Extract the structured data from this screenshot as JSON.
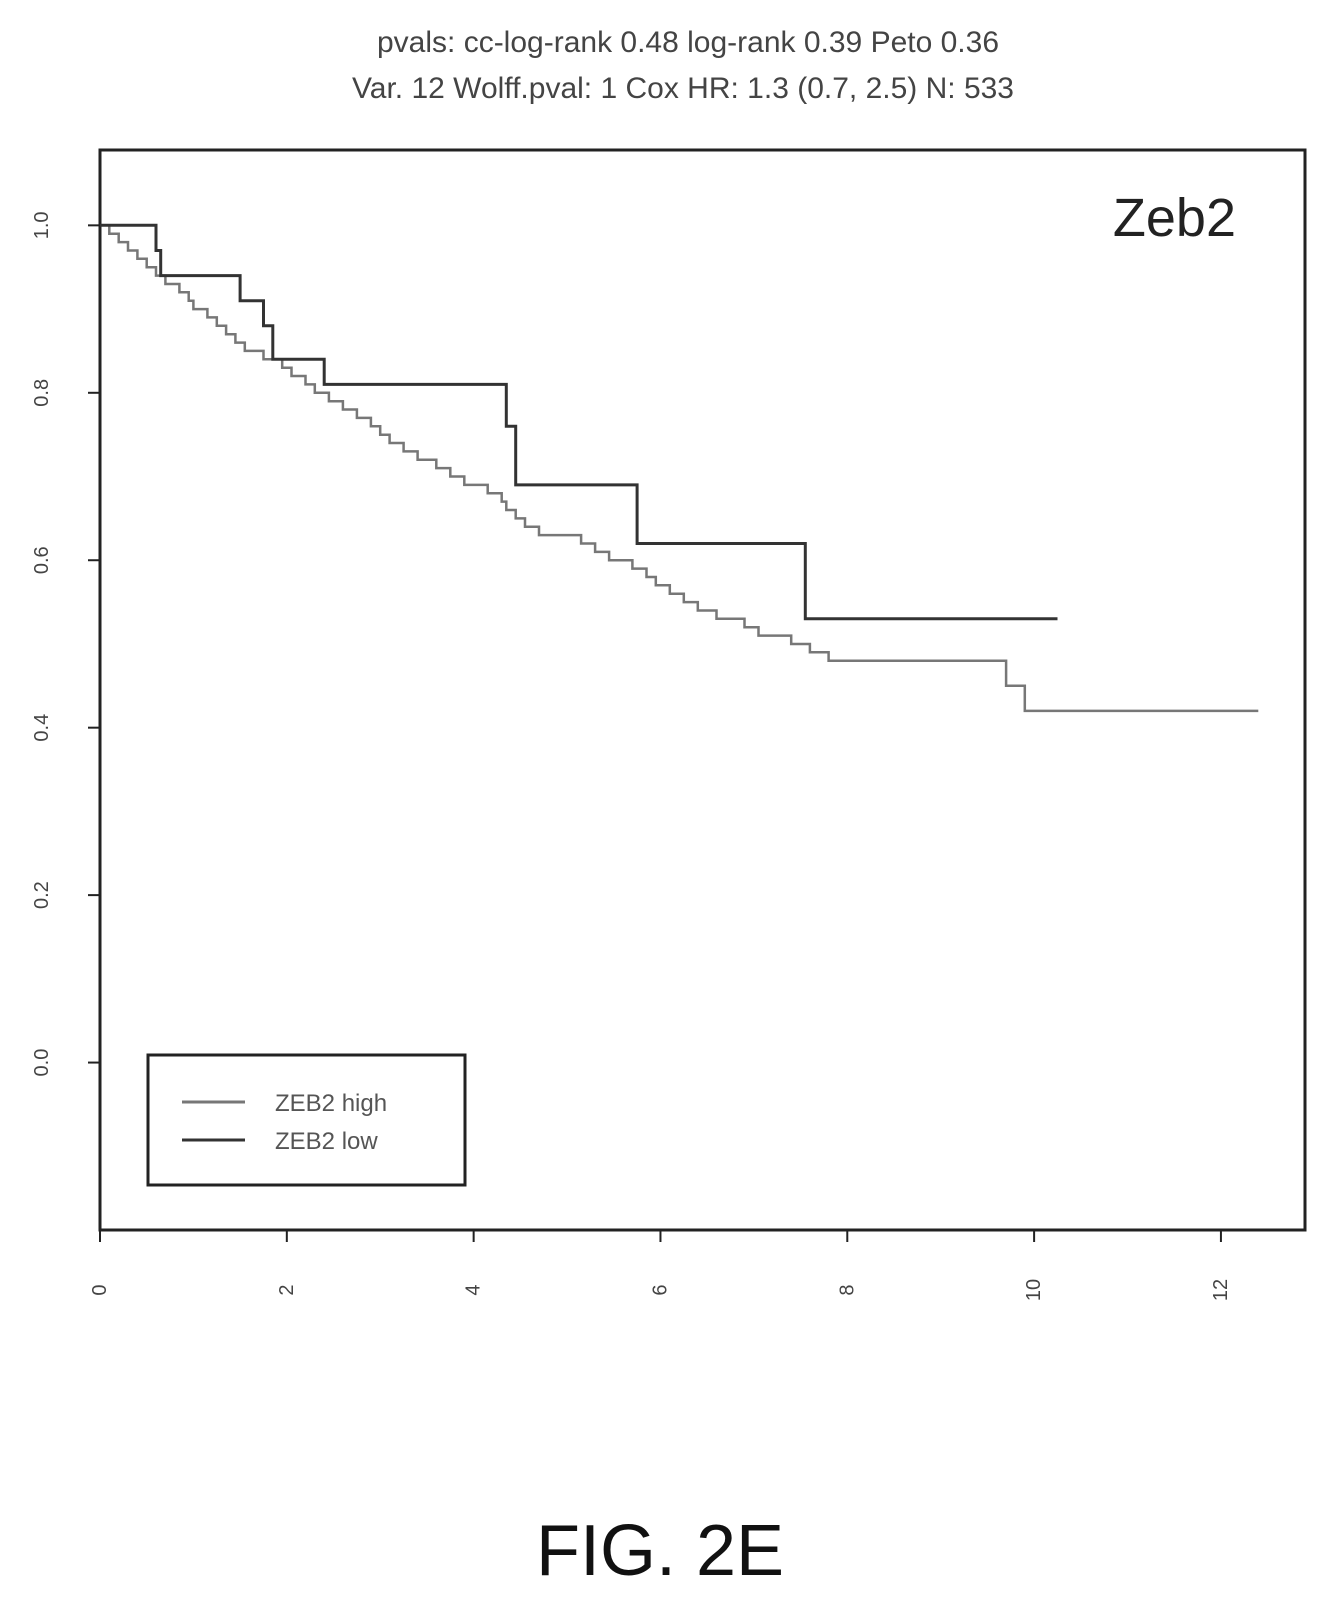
{
  "chart_data": {
    "type": "line",
    "title_lines": [
      "pvals: cc-log-rank 0.48 log-rank 0.39 Peto 0.36",
      "Var. 12 Wolff.pval: 1 Cox HR: 1.3 (0.7, 2.5) N: 533"
    ],
    "panel_label": "Zeb2",
    "xlabel": "",
    "ylabel": "",
    "xlim": [
      0,
      12.9
    ],
    "ylim": [
      -0.2,
      1.09
    ],
    "x_ticks": [
      0,
      2,
      4,
      6,
      8,
      10,
      12
    ],
    "x_tick_labels": [
      "0",
      "2",
      "4",
      "6",
      "8",
      "10",
      "12"
    ],
    "y_ticks": [
      0.0,
      0.2,
      0.4,
      0.6,
      0.8,
      1.0
    ],
    "y_tick_labels": [
      "0.0",
      "0.2",
      "0.4",
      "0.6",
      "0.8",
      "1.0"
    ],
    "grid": false,
    "legend_position": "bottom-left",
    "series": [
      {
        "name": "ZEB2 high",
        "color": "#777777",
        "step": true,
        "points": [
          [
            0.0,
            1.0
          ],
          [
            0.1,
            0.99
          ],
          [
            0.2,
            0.98
          ],
          [
            0.3,
            0.97
          ],
          [
            0.4,
            0.96
          ],
          [
            0.5,
            0.95
          ],
          [
            0.6,
            0.94
          ],
          [
            0.7,
            0.93
          ],
          [
            0.85,
            0.92
          ],
          [
            0.95,
            0.91
          ],
          [
            1.0,
            0.9
          ],
          [
            1.15,
            0.89
          ],
          [
            1.25,
            0.88
          ],
          [
            1.35,
            0.87
          ],
          [
            1.45,
            0.86
          ],
          [
            1.55,
            0.85
          ],
          [
            1.75,
            0.84
          ],
          [
            1.95,
            0.83
          ],
          [
            2.05,
            0.82
          ],
          [
            2.2,
            0.81
          ],
          [
            2.3,
            0.8
          ],
          [
            2.45,
            0.79
          ],
          [
            2.6,
            0.78
          ],
          [
            2.75,
            0.77
          ],
          [
            2.9,
            0.76
          ],
          [
            3.0,
            0.75
          ],
          [
            3.1,
            0.74
          ],
          [
            3.25,
            0.73
          ],
          [
            3.4,
            0.72
          ],
          [
            3.6,
            0.71
          ],
          [
            3.75,
            0.7
          ],
          [
            3.9,
            0.69
          ],
          [
            4.15,
            0.68
          ],
          [
            4.3,
            0.67
          ],
          [
            4.35,
            0.66
          ],
          [
            4.45,
            0.65
          ],
          [
            4.55,
            0.64
          ],
          [
            4.7,
            0.63
          ],
          [
            5.15,
            0.62
          ],
          [
            5.3,
            0.61
          ],
          [
            5.45,
            0.6
          ],
          [
            5.7,
            0.59
          ],
          [
            5.85,
            0.58
          ],
          [
            5.95,
            0.57
          ],
          [
            6.1,
            0.56
          ],
          [
            6.25,
            0.55
          ],
          [
            6.4,
            0.54
          ],
          [
            6.6,
            0.53
          ],
          [
            6.9,
            0.52
          ],
          [
            7.05,
            0.51
          ],
          [
            7.4,
            0.5
          ],
          [
            7.6,
            0.49
          ],
          [
            7.8,
            0.48
          ],
          [
            9.7,
            0.45
          ],
          [
            9.9,
            0.42
          ],
          [
            12.4,
            0.42
          ]
        ]
      },
      {
        "name": "ZEB2 low",
        "color": "#333333",
        "step": true,
        "points": [
          [
            0.0,
            1.0
          ],
          [
            0.6,
            0.97
          ],
          [
            0.65,
            0.94
          ],
          [
            1.5,
            0.91
          ],
          [
            1.75,
            0.88
          ],
          [
            1.85,
            0.84
          ],
          [
            2.4,
            0.81
          ],
          [
            4.35,
            0.76
          ],
          [
            4.45,
            0.69
          ],
          [
            5.75,
            0.62
          ],
          [
            7.55,
            0.53
          ],
          [
            10.25,
            0.53
          ]
        ]
      }
    ]
  },
  "caption": "FIG. 2E"
}
